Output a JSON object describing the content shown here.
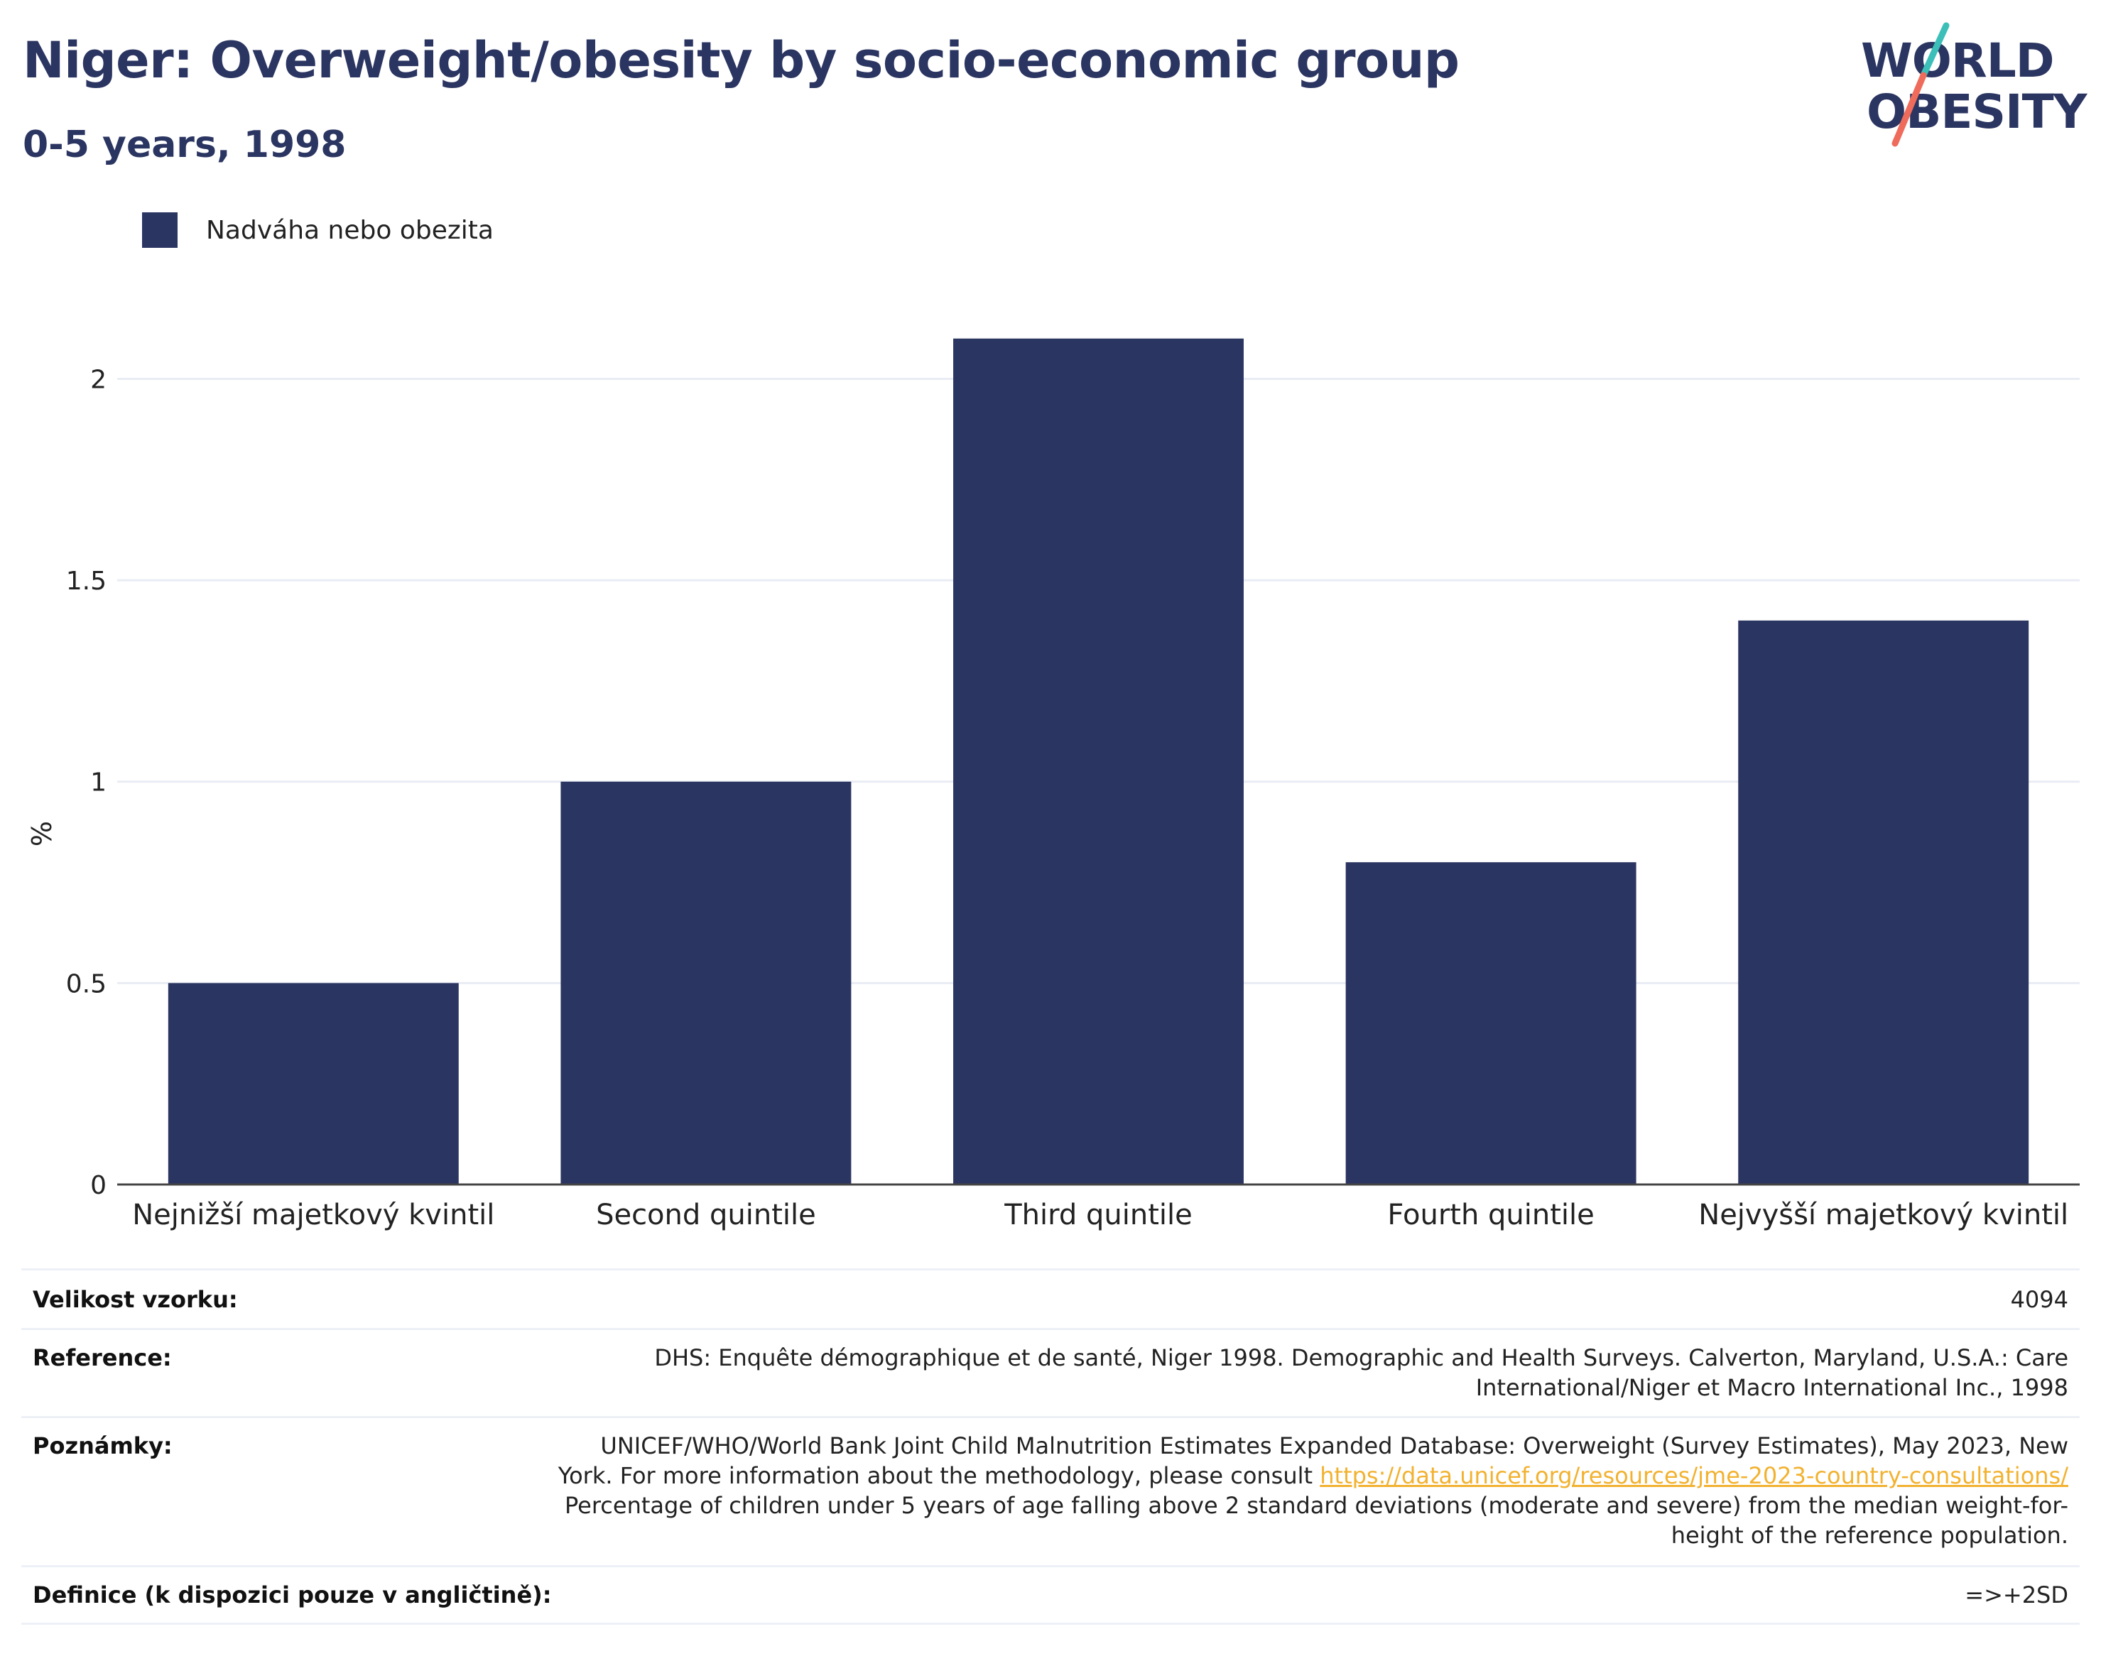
{
  "header": {
    "title": "Niger: Overweight/obesity by socio-economic group",
    "subtitle": "0-5 years, 1998"
  },
  "logo": {
    "line1": "WORLD",
    "line2": "OBESITY"
  },
  "legend": {
    "label": "Nadváha nebo obezita",
    "color": "#2b3561"
  },
  "chart_data": {
    "type": "bar",
    "categories": [
      "Nejnižší majetkový kvintil",
      "Second quintile",
      "Third quintile",
      "Fourth quintile",
      "Nejvyšší majetkový kvintil"
    ],
    "series": [
      {
        "name": "Nadváha nebo obezita",
        "values": [
          0.5,
          1.0,
          2.1,
          0.8,
          1.4
        ]
      }
    ],
    "ylabel": "%",
    "xlabel": "",
    "ylim": [
      0,
      2.2
    ],
    "yticks": [
      "0",
      "0.5",
      "1",
      "1.5",
      "2"
    ],
    "grid": true,
    "legend_position": "top-left",
    "bar_color": "#2b3561"
  },
  "meta": {
    "sample_label": "Velikost vzorku:",
    "sample_value": "4094",
    "reference_label": "Reference:",
    "reference_line1": "DHS: Enquête démographique et de santé, Niger 1998. Demographic and Health Surveys. Calverton, Maryland, U.S.A.: Care",
    "reference_line2": "International/Niger et Macro International Inc., 1998",
    "notes_label": "Poznámky:",
    "notes_line1": "UNICEF/WHO/World Bank Joint Child Malnutrition Estimates Expanded Database: Overweight (Survey Estimates), May 2023, New",
    "notes_line2_pre": "York. For more information about the methodology, please consult ",
    "notes_link": "https://data.unicef.org/resources/jme-2023-country-consultations/",
    "notes_line3": "Percentage of children under 5 years of age falling above 2 standard deviations (moderate and severe) from the median weight-for-",
    "notes_line4": "height of the reference population.",
    "definition_label": "Definice (k dispozici pouze v angličtině):",
    "definition_value": "=>+2SD"
  }
}
